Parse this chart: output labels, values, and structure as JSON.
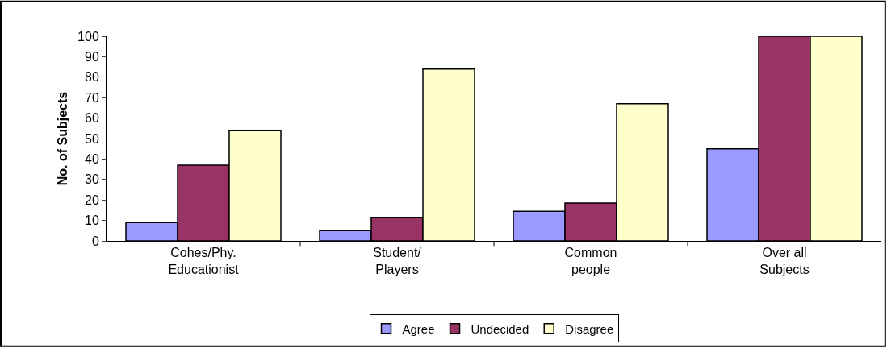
{
  "chart_data": {
    "type": "bar",
    "ylabel": "No. of Subjects",
    "categories": [
      "Cohes/Phy.\nEducationist",
      "Student/\nPlayers",
      "Common\npeople",
      "Over all\nSubjects"
    ],
    "series": [
      {
        "name": "Agree",
        "color": "#9999ff",
        "values": [
          9,
          5,
          14.5,
          45
        ]
      },
      {
        "name": "Undecided",
        "color": "#993366",
        "values": [
          37,
          11.5,
          18.5,
          100
        ]
      },
      {
        "name": "Disagree",
        "color": "#ffffcc",
        "values": [
          54,
          84,
          67,
          100
        ]
      }
    ],
    "ylim": [
      0,
      100
    ],
    "yticks": [
      0,
      10,
      20,
      30,
      40,
      50,
      60,
      70,
      80,
      90,
      100
    ],
    "legend": "bottom"
  }
}
